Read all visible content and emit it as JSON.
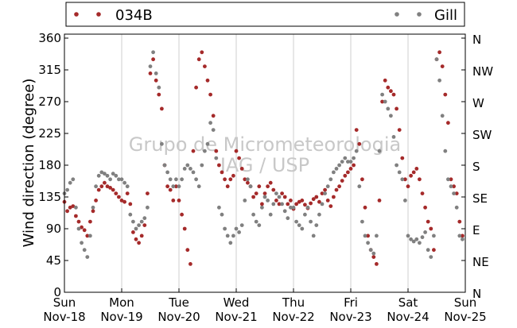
{
  "chart_data": {
    "type": "scatter",
    "ylabel": "Wind direction (degree)",
    "ylim": [
      0,
      360
    ],
    "yticks": [
      0,
      45,
      90,
      135,
      180,
      225,
      270,
      315,
      360
    ],
    "right_ticks": [
      "N",
      "NE",
      "E",
      "SE",
      "S",
      "SW",
      "W",
      "NW",
      "N"
    ],
    "xlim": [
      0,
      7
    ],
    "x_unit": "days from Sun Nov-18 00:00",
    "xticks": [
      {
        "day": "Sun",
        "date": "Nov-18"
      },
      {
        "day": "Mon",
        "date": "Nov-19"
      },
      {
        "day": "Tue",
        "date": "Nov-20"
      },
      {
        "day": "Wed",
        "date": "Nov-21"
      },
      {
        "day": "Thu",
        "date": "Nov-22"
      },
      {
        "day": "Fri",
        "date": "Nov-23"
      },
      {
        "day": "Sat",
        "date": "Nov-24"
      },
      {
        "day": "Sun",
        "date": "Nov-25"
      }
    ],
    "grid": "vertical at day boundaries",
    "legend": {
      "placement": "top",
      "entries": [
        "034B",
        "Gill"
      ]
    },
    "watermark": [
      "Grupo de Micrometeorologia",
      "IAG / USP"
    ],
    "colors": {
      "034B": "#a52a2a",
      "Gill": "#808080"
    },
    "series": [
      {
        "name": "034B",
        "color": "#a52a2a",
        "points": [
          [
            0.0,
            128
          ],
          [
            0.05,
            115
          ],
          [
            0.1,
            120
          ],
          [
            0.15,
            122
          ],
          [
            0.2,
            108
          ],
          [
            0.25,
            100
          ],
          [
            0.3,
            92
          ],
          [
            0.35,
            88
          ],
          [
            0.4,
            80
          ],
          [
            0.45,
            100
          ],
          [
            0.5,
            115
          ],
          [
            0.55,
            130
          ],
          [
            0.6,
            145
          ],
          [
            0.65,
            150
          ],
          [
            0.7,
            155
          ],
          [
            0.75,
            150
          ],
          [
            0.8,
            148
          ],
          [
            0.85,
            145
          ],
          [
            0.9,
            140
          ],
          [
            0.95,
            135
          ],
          [
            1.0,
            130
          ],
          [
            1.05,
            128
          ],
          [
            1.1,
            140
          ],
          [
            1.15,
            125
          ],
          [
            1.2,
            85
          ],
          [
            1.25,
            75
          ],
          [
            1.3,
            70
          ],
          [
            1.35,
            80
          ],
          [
            1.4,
            95
          ],
          [
            1.45,
            140
          ],
          [
            1.5,
            310
          ],
          [
            1.55,
            330
          ],
          [
            1.6,
            300
          ],
          [
            1.65,
            280
          ],
          [
            1.7,
            260
          ],
          [
            1.75,
            180
          ],
          [
            1.8,
            150
          ],
          [
            1.85,
            145
          ],
          [
            1.9,
            130
          ],
          [
            1.95,
            150
          ],
          [
            2.0,
            130
          ],
          [
            2.05,
            110
          ],
          [
            2.1,
            90
          ],
          [
            2.15,
            60
          ],
          [
            2.2,
            40
          ],
          [
            2.25,
            200
          ],
          [
            2.3,
            290
          ],
          [
            2.35,
            330
          ],
          [
            2.4,
            340
          ],
          [
            2.45,
            320
          ],
          [
            2.5,
            300
          ],
          [
            2.55,
            280
          ],
          [
            2.6,
            250
          ],
          [
            2.65,
            200
          ],
          [
            2.7,
            180
          ],
          [
            2.75,
            170
          ],
          [
            2.8,
            160
          ],
          [
            2.85,
            150
          ],
          [
            2.9,
            160
          ],
          [
            2.95,
            165
          ],
          [
            3.0,
            200
          ],
          [
            3.05,
            190
          ],
          [
            3.1,
            175
          ],
          [
            3.15,
            160
          ],
          [
            3.2,
            155
          ],
          [
            3.25,
            150
          ],
          [
            3.3,
            135
          ],
          [
            3.35,
            140
          ],
          [
            3.4,
            150
          ],
          [
            3.45,
            125
          ],
          [
            3.5,
            140
          ],
          [
            3.55,
            150
          ],
          [
            3.6,
            155
          ],
          [
            3.65,
            145
          ],
          [
            3.7,
            130
          ],
          [
            3.75,
            125
          ],
          [
            3.8,
            140
          ],
          [
            3.85,
            135
          ],
          [
            3.9,
            125
          ],
          [
            3.95,
            130
          ],
          [
            4.0,
            118
          ],
          [
            4.05,
            125
          ],
          [
            4.1,
            128
          ],
          [
            4.15,
            130
          ],
          [
            4.2,
            124
          ],
          [
            4.25,
            119
          ],
          [
            4.3,
            126
          ],
          [
            4.35,
            132
          ],
          [
            4.4,
            135
          ],
          [
            4.45,
            128
          ],
          [
            4.5,
            140
          ],
          [
            4.55,
            145
          ],
          [
            4.6,
            130
          ],
          [
            4.65,
            122
          ],
          [
            4.7,
            135
          ],
          [
            4.75,
            145
          ],
          [
            4.8,
            150
          ],
          [
            4.85,
            158
          ],
          [
            4.9,
            165
          ],
          [
            4.95,
            170
          ],
          [
            5.0,
            175
          ],
          [
            5.05,
            180
          ],
          [
            5.1,
            230
          ],
          [
            5.15,
            210
          ],
          [
            5.2,
            160
          ],
          [
            5.25,
            120
          ],
          [
            5.3,
            80
          ],
          [
            5.35,
            60
          ],
          [
            5.4,
            50
          ],
          [
            5.45,
            40
          ],
          [
            5.5,
            130
          ],
          [
            5.55,
            270
          ],
          [
            5.6,
            300
          ],
          [
            5.65,
            290
          ],
          [
            5.7,
            285
          ],
          [
            5.75,
            280
          ],
          [
            5.8,
            260
          ],
          [
            5.85,
            230
          ],
          [
            5.9,
            190
          ],
          [
            5.95,
            160
          ],
          [
            6.0,
            150
          ],
          [
            6.05,
            165
          ],
          [
            6.1,
            170
          ],
          [
            6.15,
            175
          ],
          [
            6.2,
            160
          ],
          [
            6.25,
            140
          ],
          [
            6.3,
            120
          ],
          [
            6.35,
            100
          ],
          [
            6.4,
            90
          ],
          [
            6.45,
            60
          ],
          [
            6.5,
            330
          ],
          [
            6.55,
            340
          ],
          [
            6.6,
            320
          ],
          [
            6.65,
            280
          ],
          [
            6.7,
            240
          ],
          [
            6.75,
            160
          ],
          [
            6.8,
            150
          ],
          [
            6.85,
            140
          ],
          [
            6.9,
            100
          ],
          [
            6.95,
            80
          ]
        ]
      },
      {
        "name": "Gill",
        "color": "#808080",
        "points": [
          [
            0.0,
            140
          ],
          [
            0.05,
            145
          ],
          [
            0.1,
            155
          ],
          [
            0.15,
            160
          ],
          [
            0.2,
            120
          ],
          [
            0.25,
            90
          ],
          [
            0.3,
            70
          ],
          [
            0.35,
            60
          ],
          [
            0.4,
            50
          ],
          [
            0.45,
            80
          ],
          [
            0.5,
            120
          ],
          [
            0.55,
            150
          ],
          [
            0.6,
            165
          ],
          [
            0.65,
            170
          ],
          [
            0.7,
            168
          ],
          [
            0.75,
            165
          ],
          [
            0.8,
            160
          ],
          [
            0.85,
            168
          ],
          [
            0.9,
            165
          ],
          [
            0.95,
            160
          ],
          [
            1.0,
            160
          ],
          [
            1.05,
            155
          ],
          [
            1.1,
            150
          ],
          [
            1.15,
            110
          ],
          [
            1.2,
            100
          ],
          [
            1.25,
            90
          ],
          [
            1.3,
            95
          ],
          [
            1.35,
            100
          ],
          [
            1.4,
            105
          ],
          [
            1.45,
            120
          ],
          [
            1.5,
            320
          ],
          [
            1.55,
            340
          ],
          [
            1.6,
            310
          ],
          [
            1.65,
            290
          ],
          [
            1.7,
            210
          ],
          [
            1.75,
            180
          ],
          [
            1.8,
            170
          ],
          [
            1.85,
            160
          ],
          [
            1.9,
            150
          ],
          [
            1.95,
            160
          ],
          [
            2.0,
            150
          ],
          [
            2.05,
            160
          ],
          [
            2.1,
            175
          ],
          [
            2.15,
            180
          ],
          [
            2.2,
            175
          ],
          [
            2.25,
            170
          ],
          [
            2.3,
            160
          ],
          [
            2.35,
            150
          ],
          [
            2.4,
            180
          ],
          [
            2.45,
            200
          ],
          [
            2.5,
            210
          ],
          [
            2.55,
            240
          ],
          [
            2.6,
            230
          ],
          [
            2.65,
            190
          ],
          [
            2.7,
            120
          ],
          [
            2.75,
            110
          ],
          [
            2.8,
            90
          ],
          [
            2.85,
            80
          ],
          [
            2.9,
            70
          ],
          [
            2.95,
            80
          ],
          [
            3.0,
            90
          ],
          [
            3.05,
            85
          ],
          [
            3.1,
            95
          ],
          [
            3.15,
            130
          ],
          [
            3.2,
            160
          ],
          [
            3.25,
            150
          ],
          [
            3.3,
            110
          ],
          [
            3.35,
            100
          ],
          [
            3.4,
            95
          ],
          [
            3.45,
            120
          ],
          [
            3.5,
            135
          ],
          [
            3.55,
            130
          ],
          [
            3.6,
            110
          ],
          [
            3.65,
            125
          ],
          [
            3.7,
            140
          ],
          [
            3.75,
            135
          ],
          [
            3.8,
            125
          ],
          [
            3.85,
            115
          ],
          [
            3.9,
            105
          ],
          [
            3.95,
            120
          ],
          [
            4.0,
            120
          ],
          [
            4.05,
            100
          ],
          [
            4.1,
            95
          ],
          [
            4.15,
            90
          ],
          [
            4.2,
            110
          ],
          [
            4.25,
            120
          ],
          [
            4.3,
            100
          ],
          [
            4.35,
            80
          ],
          [
            4.4,
            95
          ],
          [
            4.45,
            110
          ],
          [
            4.5,
            125
          ],
          [
            4.55,
            140
          ],
          [
            4.6,
            150
          ],
          [
            4.65,
            160
          ],
          [
            4.7,
            170
          ],
          [
            4.75,
            175
          ],
          [
            4.8,
            180
          ],
          [
            4.85,
            185
          ],
          [
            4.9,
            190
          ],
          [
            4.95,
            185
          ],
          [
            5.0,
            185
          ],
          [
            5.05,
            190
          ],
          [
            5.1,
            200
          ],
          [
            5.15,
            150
          ],
          [
            5.2,
            100
          ],
          [
            5.25,
            80
          ],
          [
            5.3,
            70
          ],
          [
            5.35,
            60
          ],
          [
            5.4,
            55
          ],
          [
            5.45,
            80
          ],
          [
            5.5,
            200
          ],
          [
            5.55,
            280
          ],
          [
            5.6,
            270
          ],
          [
            5.65,
            260
          ],
          [
            5.7,
            250
          ],
          [
            5.75,
            220
          ],
          [
            5.8,
            180
          ],
          [
            5.85,
            170
          ],
          [
            5.9,
            160
          ],
          [
            5.95,
            130
          ],
          [
            6.0,
            80
          ],
          [
            6.05,
            75
          ],
          [
            6.1,
            72
          ],
          [
            6.15,
            75
          ],
          [
            6.2,
            70
          ],
          [
            6.25,
            78
          ],
          [
            6.3,
            85
          ],
          [
            6.35,
            60
          ],
          [
            6.4,
            50
          ],
          [
            6.45,
            80
          ],
          [
            6.5,
            330
          ],
          [
            6.55,
            300
          ],
          [
            6.6,
            250
          ],
          [
            6.65,
            200
          ],
          [
            6.7,
            160
          ],
          [
            6.75,
            150
          ],
          [
            6.8,
            140
          ],
          [
            6.85,
            120
          ],
          [
            6.9,
            80
          ],
          [
            6.95,
            75
          ]
        ]
      }
    ]
  }
}
